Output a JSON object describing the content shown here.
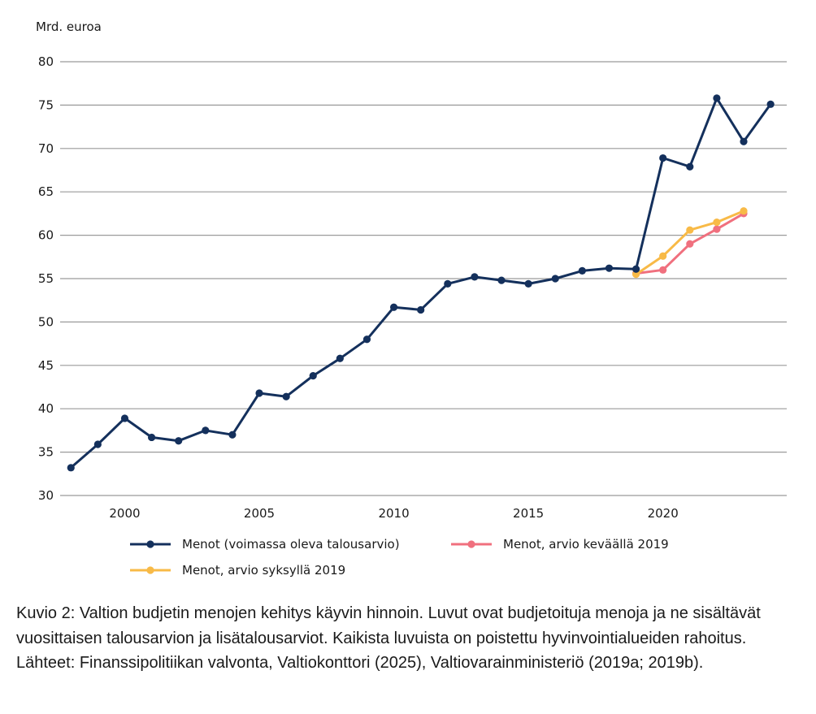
{
  "chart_data": {
    "type": "line",
    "ylabel": "Mrd. euroa",
    "ylim": [
      30,
      80
    ],
    "yticks": [
      30,
      35,
      40,
      45,
      50,
      55,
      60,
      65,
      70,
      75,
      80
    ],
    "xlim": [
      1997.6,
      2024.6
    ],
    "xticks": [
      2000,
      2005,
      2010,
      2015,
      2020
    ],
    "grid": "horizontal",
    "legend_position": "bottom",
    "series": [
      {
        "name": "Menot (voimassa oleva talousarvio)",
        "color": "#14305c",
        "x": [
          1998,
          1999,
          2000,
          2001,
          2002,
          2003,
          2004,
          2005,
          2006,
          2007,
          2008,
          2009,
          2010,
          2011,
          2012,
          2013,
          2014,
          2015,
          2016,
          2017,
          2018,
          2019,
          2020,
          2021,
          2022,
          2023,
          2024
        ],
        "values": [
          33.2,
          35.9,
          38.9,
          36.7,
          36.3,
          37.5,
          37.0,
          41.8,
          41.4,
          43.8,
          45.8,
          48.0,
          51.7,
          51.4,
          54.4,
          55.2,
          54.8,
          54.4,
          55.0,
          55.9,
          56.2,
          56.1,
          68.9,
          67.9,
          75.8,
          70.8,
          75.1
        ]
      },
      {
        "name": "Menot, arvio keväällä 2019",
        "color": "#f0707e",
        "x": [
          2019,
          2020,
          2021,
          2022,
          2023
        ],
        "values": [
          55.6,
          56.0,
          59.0,
          60.7,
          62.5
        ]
      },
      {
        "name": "Menot, arvio syksyllä 2019",
        "color": "#f8ba47",
        "x": [
          2019,
          2020,
          2021,
          2022,
          2023
        ],
        "values": [
          55.5,
          57.6,
          60.6,
          61.5,
          62.8
        ]
      }
    ]
  },
  "caption": "Kuvio 2: Valtion budjetin menojen kehitys käyvin hinnoin. Luvut ovat budjetoituja menoja ja ne sisältävät vuosittaisen talousarvion ja lisätalousarviot. Kaikista luvuista on poistettu hyvinvointialueiden rahoitus. Lähteet: Finanssipolitiikan valvonta, Valtiokonttori (2025), Valtiovarainministeriö (2019a; 2019b)."
}
